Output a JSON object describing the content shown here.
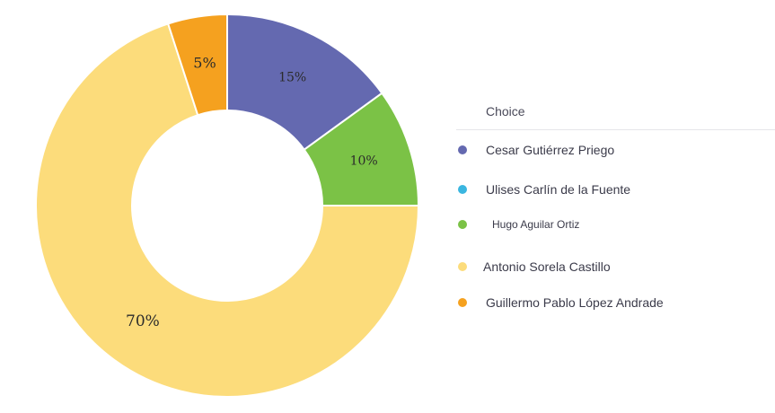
{
  "chart_data": {
    "type": "pie",
    "style": "donut",
    "legend_title": "Choice",
    "legend_position": "right",
    "slices": [
      {
        "name": "Cesar Gutiérrez Priego",
        "value": 15,
        "label": "15%",
        "color": "#6469b0"
      },
      {
        "name": "Ulises Carlín de la Fuente",
        "value": 0,
        "label": "",
        "color": "#3ab6e0"
      },
      {
        "name": "Hugo Aguilar Ortiz",
        "value": 10,
        "label": "10%",
        "color": "#7bc246"
      },
      {
        "name": "Antonio Sorela Castillo",
        "value": 70,
        "label": "70%",
        "color": "#fcdc7b"
      },
      {
        "name": "Guillermo Pablo López Andrade",
        "value": 5,
        "label": "5%",
        "color": "#f5a11f"
      }
    ]
  }
}
